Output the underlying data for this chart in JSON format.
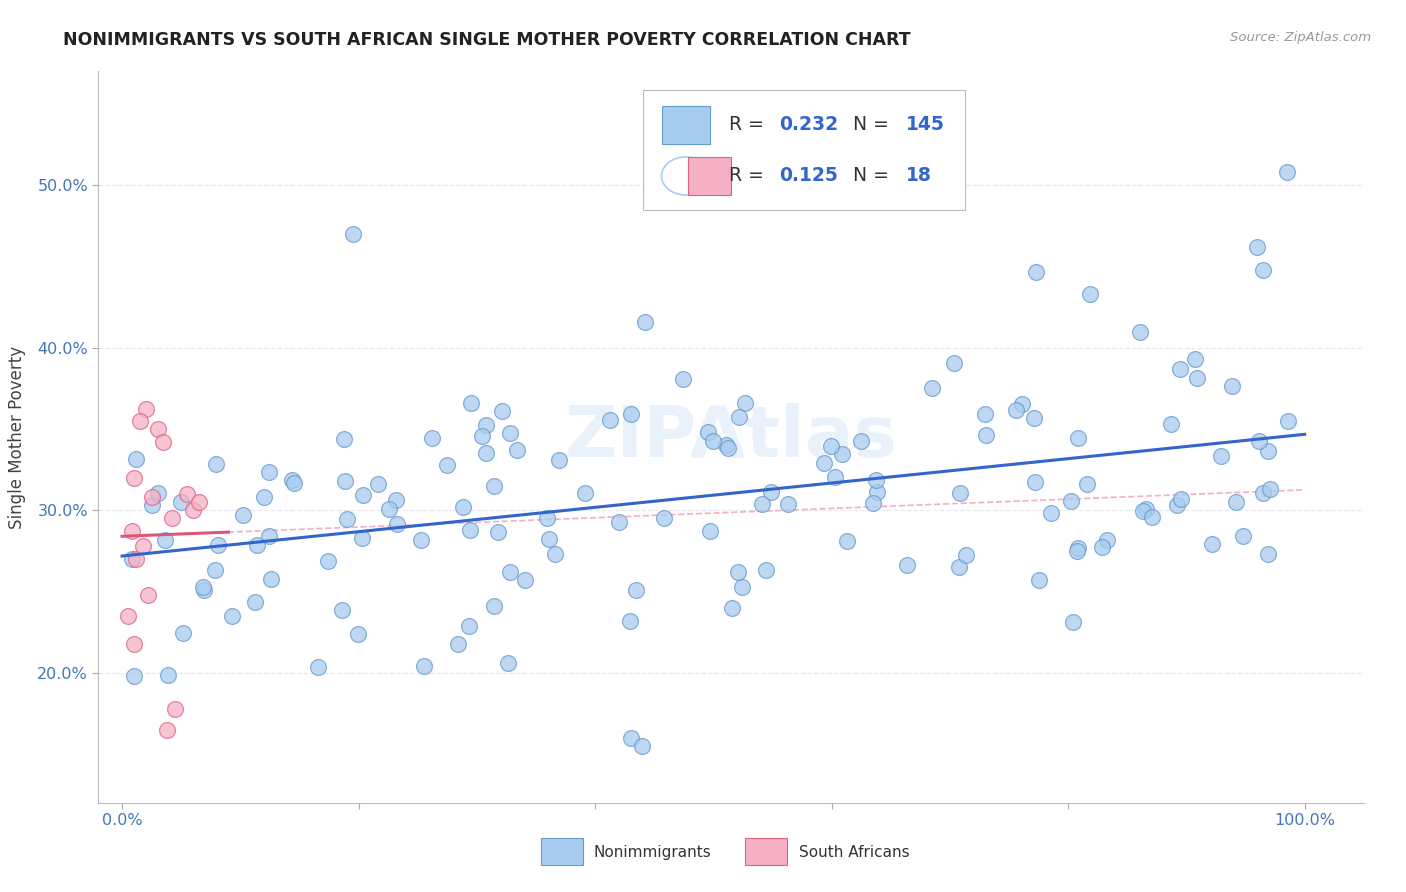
{
  "title": "NONIMMIGRANTS VS SOUTH AFRICAN SINGLE MOTHER POVERTY CORRELATION CHART",
  "source": "Source: ZipAtlas.com",
  "ylabel": "Single Mother Poverty",
  "R_blue": 0.232,
  "N_blue": 145,
  "R_pink": 0.125,
  "N_pink": 18,
  "blue_fill": "#A8CCF0",
  "blue_edge": "#6699CC",
  "pink_fill": "#F5B0C5",
  "pink_edge": "#E06080",
  "blue_line": "#3366CC",
  "pink_line": "#DD5577",
  "blue_dash": "#C0D8F0",
  "pink_dash": "#F0B0C8",
  "grid_color": "#E8E8EE",
  "title_color": "#222222",
  "tick_color": "#4477BB",
  "legend_text_color": "#333333",
  "legend_value_color": "#3366CC",
  "watermark_color": "#D8E8F8",
  "xlim": [
    -0.02,
    1.05
  ],
  "ylim": [
    0.12,
    0.57
  ],
  "ytick_vals": [
    0.2,
    0.3,
    0.4,
    0.5
  ],
  "ytick_labels": [
    "20.0%",
    "30.0%",
    "40.0%",
    "50.0%"
  ],
  "xtick_vals": [
    0.0,
    0.2,
    0.4,
    0.6,
    0.8,
    1.0
  ],
  "xtick_labels": [
    "0.0%",
    "",
    "",
    "",
    "",
    "100.0%"
  ]
}
